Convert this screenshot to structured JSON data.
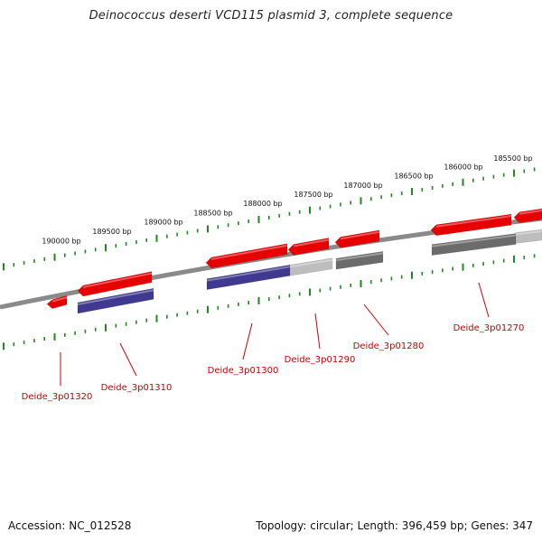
{
  "title": "Deinococcus deserti VCD115 plasmid 3, complete sequence",
  "footer": {
    "accession": "Accession: NC_012528",
    "summary": "Topology: circular; Length: 396,459 bp; Genes: 347"
  },
  "colors": {
    "backbone": "#8a8a8a",
    "tick": "#1f8a1f",
    "label": "#cc0000",
    "gene_red": "#e60000",
    "gene_purple": "#3f3a8f",
    "gene_dark_gray": "#6b6b6b",
    "gene_light_gray": "#bdbdbd"
  },
  "ruler": {
    "labels": [
      "190000 bp",
      "189500 bp",
      "189000 bp",
      "188500 bp",
      "188000 bp",
      "187500 bp",
      "187000 bp",
      "186500 bp",
      "186000 bp",
      "185500 bp"
    ]
  },
  "genes": [
    {
      "name": "Deide_3p01320",
      "strand": "reverse",
      "color": "red"
    },
    {
      "name": "Deide_3p01310",
      "strand": "reverse",
      "color": "red",
      "track_color": "purple"
    },
    {
      "name": "Deide_3p01300",
      "strand": "reverse",
      "color": "red",
      "track_color": "purple"
    },
    {
      "name": "Deide_3p01290",
      "strand": "reverse",
      "color": "red",
      "track_color": "light_gray"
    },
    {
      "name": "Deide_3p01280",
      "strand": "reverse",
      "color": "red",
      "track_color": "dark_gray"
    },
    {
      "name": "Deide_3p01270",
      "strand": "reverse",
      "color": "red",
      "track_color": "dark_gray"
    }
  ]
}
